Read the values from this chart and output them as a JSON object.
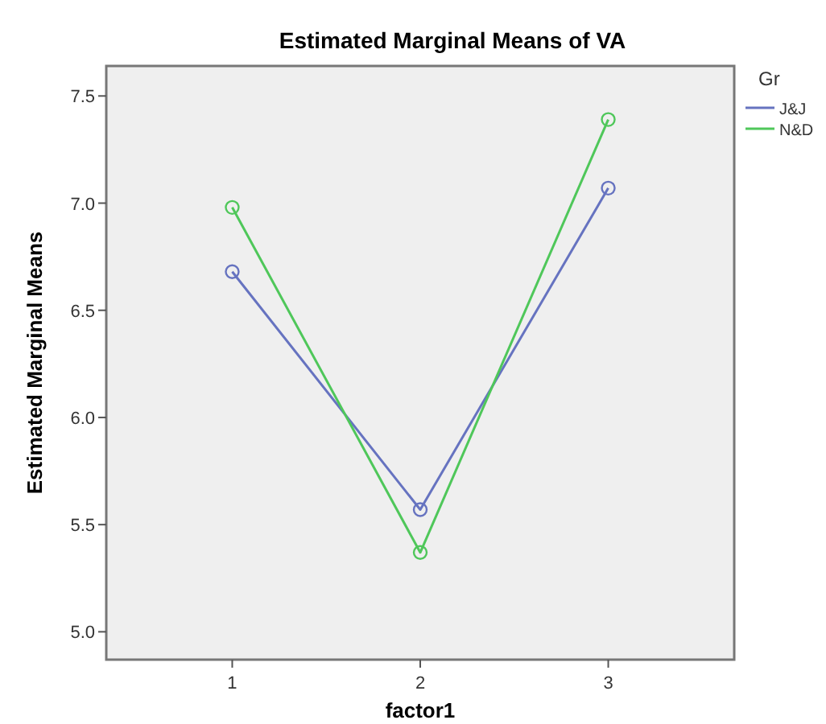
{
  "chart_data": {
    "type": "line",
    "title": "Estimated Marginal Means of VA",
    "xlabel": "factor1",
    "ylabel": "Estimated Marginal Means",
    "legend_title": "Gr",
    "legend": "right",
    "marker": "circle",
    "grid": false,
    "x": [
      1,
      2,
      3
    ],
    "xlim": [
      0.33,
      3.67
    ],
    "xticks": [
      1,
      2,
      3
    ],
    "ylim": [
      4.87,
      7.64
    ],
    "yticks": [
      {
        "value": 5,
        "label": "5.0"
      },
      {
        "value": 5.5,
        "label": "5.5"
      },
      {
        "value": 6,
        "label": "6.0"
      },
      {
        "value": 6.5,
        "label": "6.5"
      },
      {
        "value": 7,
        "label": "7.0"
      },
      {
        "value": 7.5,
        "label": "7.5"
      }
    ],
    "series": [
      {
        "name": "J&J",
        "color": "#6673c0",
        "values": [
          6.68,
          5.57,
          7.07
        ]
      },
      {
        "name": "N&D",
        "color": "#4fc75a",
        "values": [
          6.98,
          5.37,
          7.39
        ]
      }
    ]
  }
}
